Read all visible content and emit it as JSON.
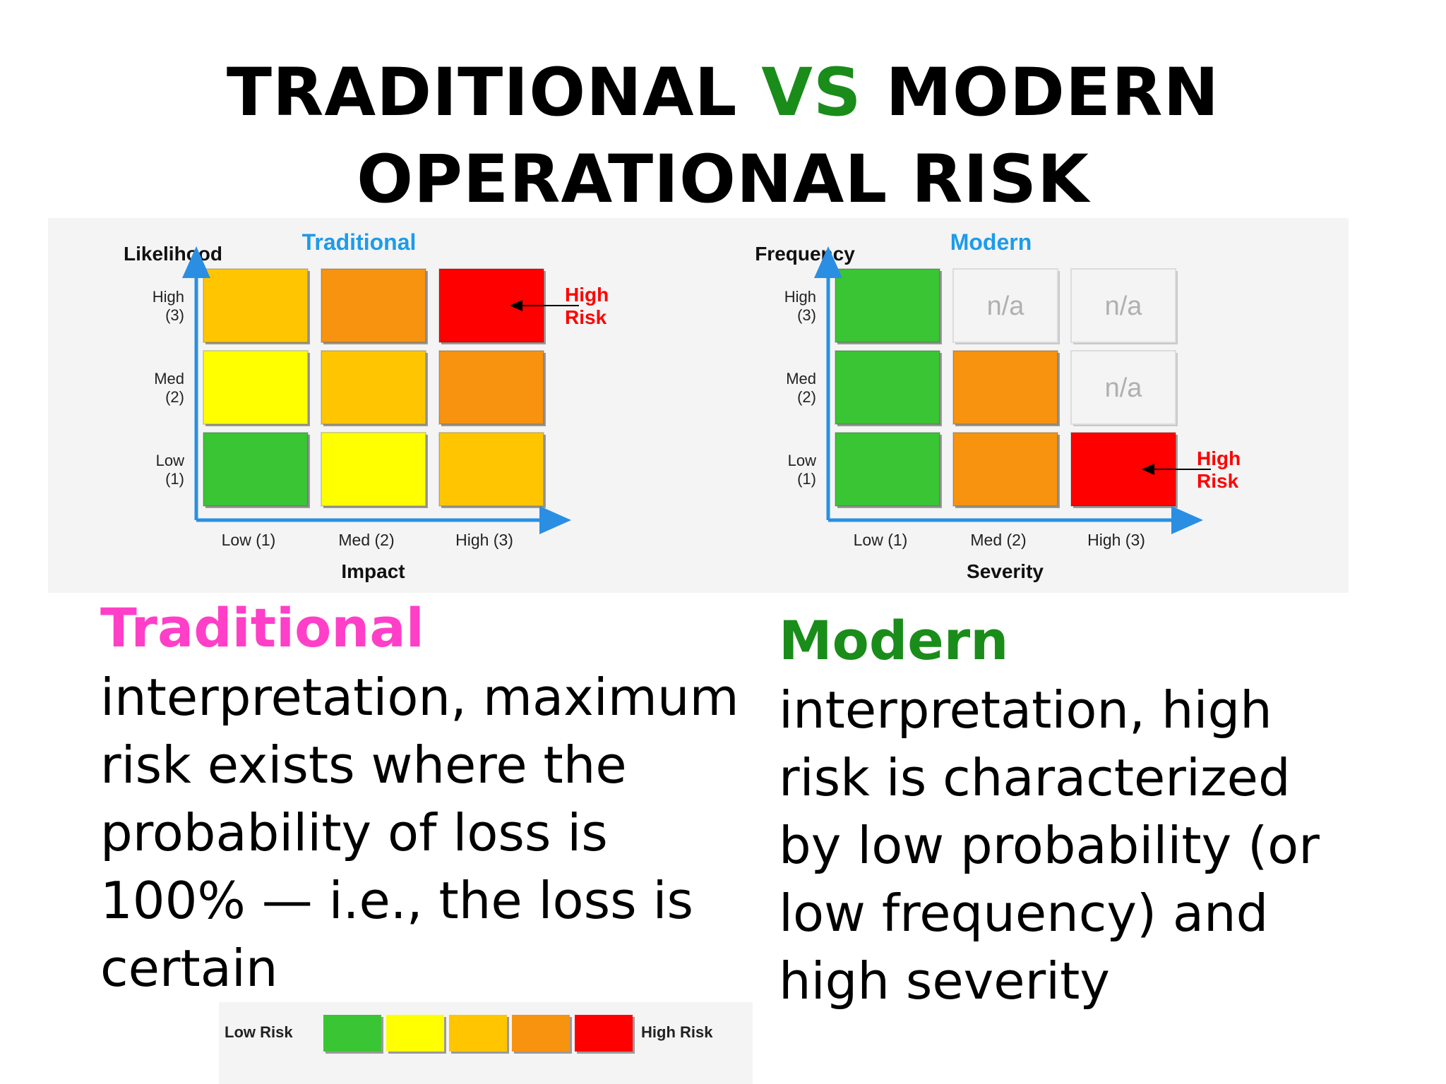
{
  "title": {
    "part1": "TRADITIONAL",
    "vs": "VS",
    "part2": "MODERN",
    "line2": "OPERATIONAL RISK"
  },
  "colors": {
    "green": "#39c534",
    "yellow": "#ffff00",
    "amber": "#ffc600",
    "orange": "#f7930e",
    "red": "#ff0000",
    "na": "#f4f4f4",
    "axis": "#2a8fe3",
    "heading_blue": "#1d9bea",
    "high_risk_label": "#ff0000"
  },
  "chart_data": [
    {
      "type": "heatmap",
      "title": "Traditional",
      "ylabel": "Likelihood",
      "xlabel": "Impact",
      "x_categories": [
        "Low (1)",
        "Med (2)",
        "High (3)"
      ],
      "y_categories": [
        {
          "line1": "High",
          "line2": "(3)"
        },
        {
          "line1": "Med",
          "line2": "(2)"
        },
        {
          "line1": "Low",
          "line2": "(1)"
        }
      ],
      "cells": [
        [
          "amber",
          "orange",
          "red"
        ],
        [
          "yellow",
          "amber",
          "orange"
        ],
        [
          "green",
          "yellow",
          "amber"
        ]
      ],
      "cell_text": [
        [
          "",
          "",
          ""
        ],
        [
          "",
          "",
          ""
        ],
        [
          "",
          "",
          ""
        ]
      ],
      "annotation": {
        "line1": "High",
        "line2": "Risk",
        "row": 0,
        "col": 2
      }
    },
    {
      "type": "heatmap",
      "title": "Modern",
      "ylabel": "Frequency",
      "xlabel": "Severity",
      "x_categories": [
        "Low (1)",
        "Med (2)",
        "High (3)"
      ],
      "y_categories": [
        {
          "line1": "High",
          "line2": "(3)"
        },
        {
          "line1": "Med",
          "line2": "(2)"
        },
        {
          "line1": "Low",
          "line2": "(1)"
        }
      ],
      "cells": [
        [
          "green",
          "na",
          "na"
        ],
        [
          "green",
          "orange",
          "na"
        ],
        [
          "green",
          "orange",
          "red"
        ]
      ],
      "cell_text": [
        [
          "",
          "n/a",
          "n/a"
        ],
        [
          "",
          "",
          "n/a"
        ],
        [
          "",
          "",
          ""
        ]
      ],
      "annotation": {
        "line1": "High",
        "line2": "Risk",
        "row": 2,
        "col": 2
      }
    }
  ],
  "legend": {
    "low_label": "Low Risk",
    "high_label": "High Risk",
    "scale": [
      "green",
      "yellow",
      "amber",
      "orange",
      "red"
    ]
  },
  "traditional": {
    "heading": "Traditional",
    "lines": [
      "interpretation, maximum",
      "risk exists where the",
      "probability of loss is",
      "100% — i.e., the loss is",
      "certain"
    ]
  },
  "modern": {
    "heading": "Modern",
    "lines": [
      "interpretation, high",
      "risk is characterized",
      "by low probability (or",
      "low frequency) and",
      "high severity"
    ]
  }
}
